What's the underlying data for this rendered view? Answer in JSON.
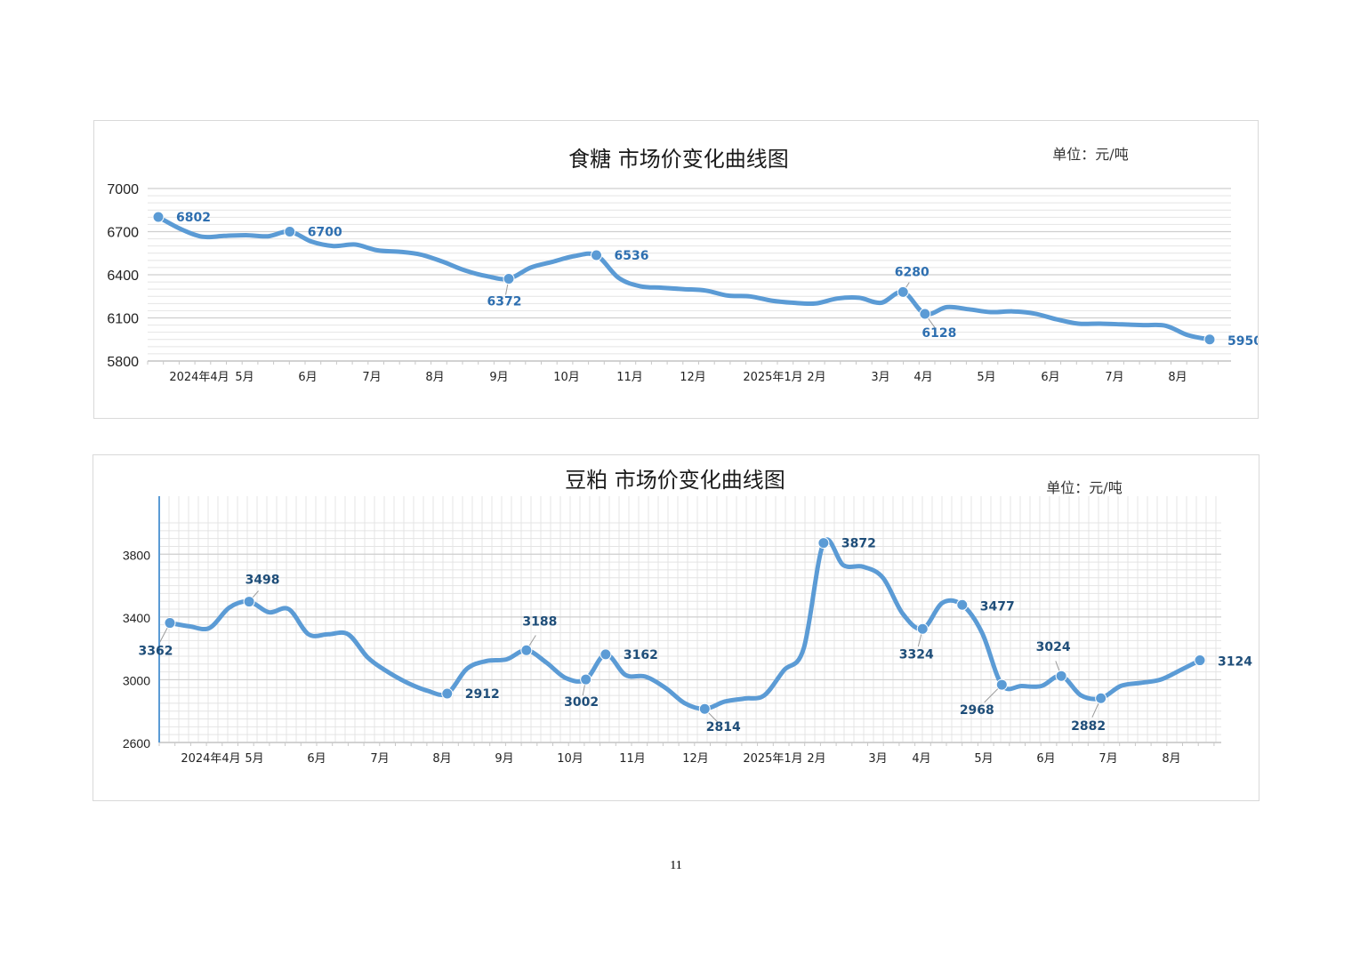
{
  "page": {
    "number": "11"
  },
  "chart_data": [
    {
      "type": "line",
      "title": "食糖 市场价变化曲线图",
      "unit_note": "单位：元/吨",
      "xlabel": "",
      "ylabel": "",
      "ylim": [
        5800,
        7000
      ],
      "yticks": [
        5800,
        6100,
        6400,
        6700,
        7000
      ],
      "grid": "horizontal-minor",
      "color": "#5b9bd5",
      "label_color": "#2e6fb0",
      "x_ticks": [
        "2024年4月",
        "5月",
        "6月",
        "7月",
        "8月",
        "9月",
        "10月",
        "11月",
        "12月",
        "2025年1月",
        "2月",
        "3月",
        "4月",
        "5月",
        "6月",
        "7月",
        "8月"
      ],
      "series": [
        {
          "values": [
            6802,
            6720,
            6665,
            6670,
            6675,
            6668,
            6700,
            6630,
            6600,
            6610,
            6570,
            6560,
            6540,
            6490,
            6430,
            6390,
            6372,
            6450,
            6490,
            6530,
            6536,
            6380,
            6320,
            6310,
            6300,
            6290,
            6255,
            6250,
            6220,
            6205,
            6200,
            6235,
            6240,
            6205,
            6280,
            6128,
            6175,
            6160,
            6140,
            6145,
            6130,
            6090,
            6060,
            6060,
            6055,
            6050,
            6045,
            5980,
            5950
          ]
        }
      ],
      "highlights": [
        {
          "label": "6802",
          "value": 6802
        },
        {
          "label": "6700",
          "value": 6700
        },
        {
          "label": "6372",
          "value": 6372
        },
        {
          "label": "6536",
          "value": 6536
        },
        {
          "label": "6280",
          "value": 6280
        },
        {
          "label": "6128",
          "value": 6128
        },
        {
          "label": "5950",
          "value": 5950
        }
      ]
    },
    {
      "type": "line",
      "title": "豆粕 市场价变化曲线图",
      "unit_note": "单位：元/吨",
      "xlabel": "",
      "ylabel": "",
      "ylim": [
        2600,
        4000
      ],
      "yticks": [
        2600,
        3000,
        3400,
        3800
      ],
      "grid": "both-minor",
      "color": "#5b9bd5",
      "label_color": "#1f4e79",
      "x_ticks": [
        "2024年4月",
        "5月",
        "6月",
        "7月",
        "8月",
        "9月",
        "10月",
        "11月",
        "12月",
        "2025年1月",
        "2月",
        "3月",
        "4月",
        "5月",
        "6月",
        "7月",
        "8月"
      ],
      "series": [
        {
          "values": [
            3362,
            3340,
            3330,
            3460,
            3498,
            3430,
            3450,
            3290,
            3290,
            3290,
            3140,
            3050,
            2980,
            2930,
            2912,
            3070,
            3120,
            3130,
            3188,
            3110,
            3010,
            3002,
            3162,
            3030,
            3020,
            2950,
            2850,
            2814,
            2860,
            2880,
            2900,
            3060,
            3200,
            3872,
            3730,
            3720,
            3650,
            3420,
            3324,
            3490,
            3477,
            3300,
            2968,
            2960,
            2960,
            3024,
            2900,
            2882,
            2960,
            2980,
            3000,
            3060,
            3124
          ]
        }
      ],
      "highlights": [
        {
          "label": "3362",
          "value": 3362
        },
        {
          "label": "3498",
          "value": 3498
        },
        {
          "label": "2912",
          "value": 2912
        },
        {
          "label": "3188",
          "value": 3188
        },
        {
          "label": "3002",
          "value": 3002
        },
        {
          "label": "3162",
          "value": 3162
        },
        {
          "label": "2814",
          "value": 2814
        },
        {
          "label": "3872",
          "value": 3872
        },
        {
          "label": "3324",
          "value": 3324
        },
        {
          "label": "3477",
          "value": 3477
        },
        {
          "label": "2968",
          "value": 2968
        },
        {
          "label": "3024",
          "value": 3024
        },
        {
          "label": "2882",
          "value": 2882
        },
        {
          "label": "3124",
          "value": 3124
        }
      ]
    }
  ]
}
